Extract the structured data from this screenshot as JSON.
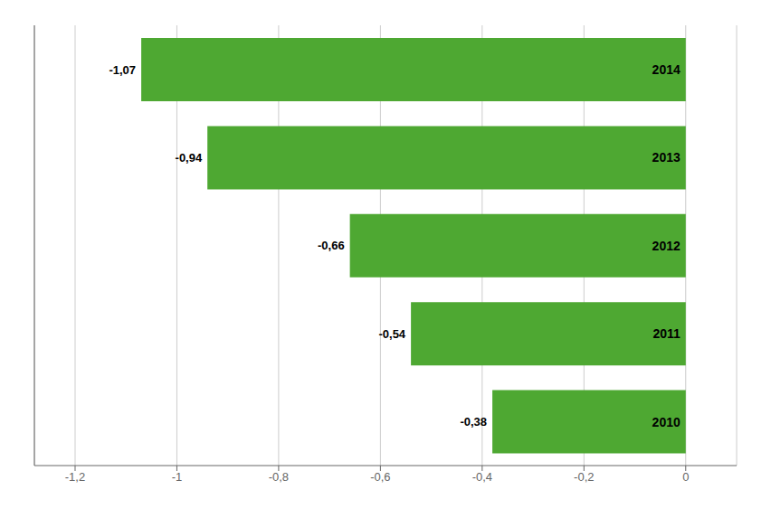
{
  "chart_data": {
    "type": "bar",
    "orientation": "horizontal",
    "categories": [
      "2010",
      "2011",
      "2012",
      "2013",
      "2014"
    ],
    "values": [
      -0.38,
      -0.54,
      -0.66,
      -0.94,
      -1.07
    ],
    "value_labels": [
      "-0,38",
      "-0,54",
      "-0,66",
      "-0,94",
      "-1,07"
    ],
    "data_labels": true,
    "color": "#4ea832",
    "xlim": [
      -1.28,
      0.1
    ],
    "xticks": [
      {
        "value": -1.2,
        "label": "-1,2"
      },
      -1,
      {
        "value": -0.8,
        "label": "-0,8"
      },
      {
        "value": -0.6,
        "label": "-0,6"
      },
      {
        "value": -0.4,
        "label": "-0,4"
      },
      {
        "value": -0.2,
        "label": "-0,2"
      },
      0
    ],
    "grid": true,
    "tick_labels": "x"
  }
}
